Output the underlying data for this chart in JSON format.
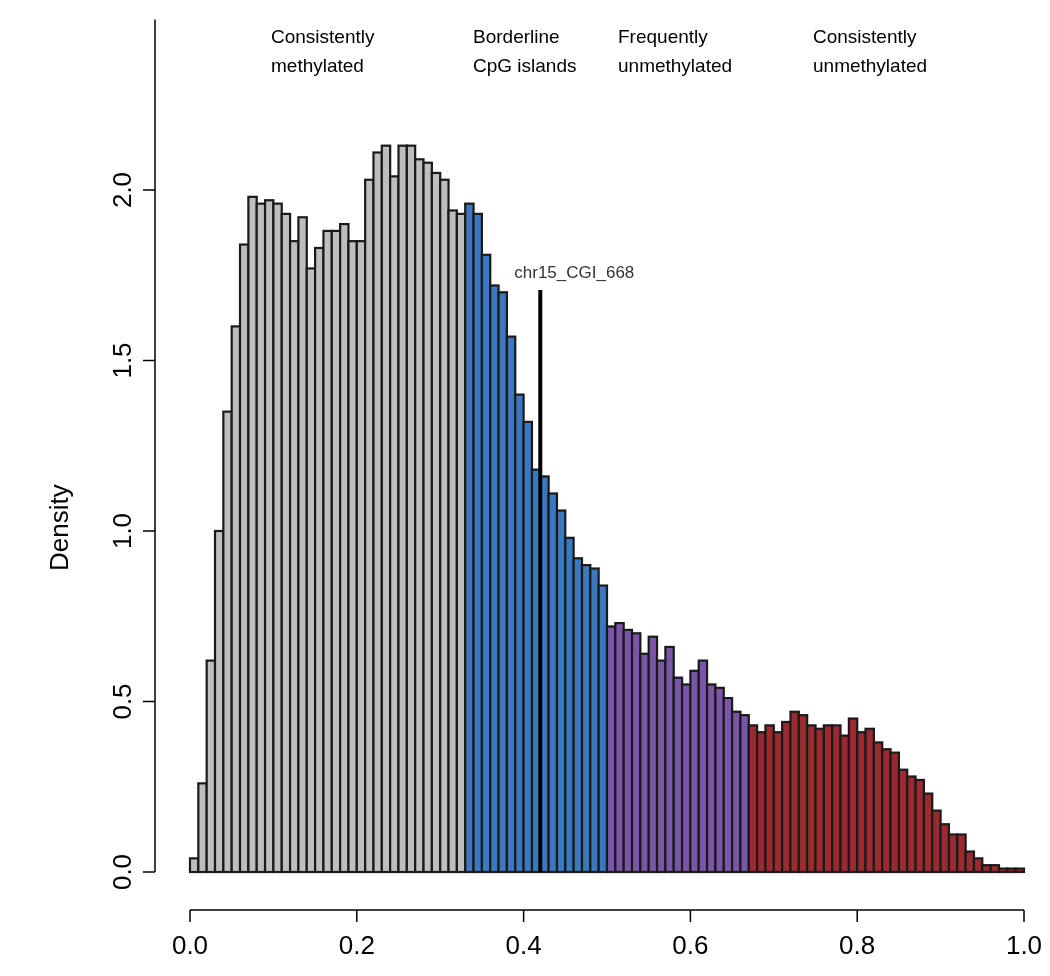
{
  "chart_data": {
    "type": "histogram",
    "ylabel": "Density",
    "bins": [
      0,
      0.01,
      0.02,
      0.03,
      0.04,
      0.05,
      0.06,
      0.07,
      0.08,
      0.09,
      0.1,
      0.11,
      0.12,
      0.13,
      0.14,
      0.15,
      0.16,
      0.17,
      0.18,
      0.19,
      0.2,
      0.21,
      0.22,
      0.23,
      0.24,
      0.25,
      0.26,
      0.27,
      0.28,
      0.29,
      0.3,
      0.31,
      0.32,
      0.33,
      0.34,
      0.35,
      0.36,
      0.37,
      0.38,
      0.39,
      0.4,
      0.41,
      0.42,
      0.43,
      0.44,
      0.45,
      0.46,
      0.47,
      0.48,
      0.49,
      0.5,
      0.51,
      0.52,
      0.53,
      0.54,
      0.55,
      0.56,
      0.57,
      0.58,
      0.59,
      0.6,
      0.61,
      0.62,
      0.63,
      0.64,
      0.65,
      0.66,
      0.67,
      0.68,
      0.69,
      0.7,
      0.71,
      0.72,
      0.73,
      0.74,
      0.75,
      0.76,
      0.77,
      0.78,
      0.79,
      0.8,
      0.81,
      0.82,
      0.83,
      0.84,
      0.85,
      0.86,
      0.87,
      0.88,
      0.89,
      0.9,
      0.91,
      0.92,
      0.93,
      0.94,
      0.95,
      0.96,
      0.97,
      0.98,
      0.99,
      1
    ],
    "values": [
      0.04,
      0.26,
      0.62,
      1.0,
      1.35,
      1.6,
      1.84,
      1.98,
      1.96,
      1.97,
      1.96,
      1.93,
      1.85,
      1.92,
      1.77,
      1.83,
      1.88,
      1.88,
      1.9,
      1.85,
      1.85,
      2.03,
      2.11,
      2.13,
      2.04,
      2.13,
      2.13,
      2.09,
      2.08,
      2.05,
      2.03,
      1.94,
      1.93,
      1.96,
      1.93,
      1.81,
      1.72,
      1.7,
      1.57,
      1.4,
      1.32,
      1.18,
      1.16,
      1.11,
      1.06,
      0.98,
      0.92,
      0.9,
      0.89,
      0.84,
      0.72,
      0.73,
      0.71,
      0.7,
      0.64,
      0.69,
      0.62,
      0.66,
      0.57,
      0.55,
      0.59,
      0.62,
      0.55,
      0.54,
      0.51,
      0.47,
      0.46,
      0.43,
      0.41,
      0.43,
      0.41,
      0.44,
      0.47,
      0.46,
      0.43,
      0.42,
      0.43,
      0.43,
      0.4,
      0.45,
      0.41,
      0.42,
      0.38,
      0.36,
      0.35,
      0.3,
      0.28,
      0.27,
      0.23,
      0.18,
      0.14,
      0.11,
      0.11,
      0.06,
      0.04,
      0.02,
      0.02,
      0.01,
      0.01,
      0.01
    ],
    "colors": [
      "#bebebe",
      "#bebebe",
      "#bebebe",
      "#bebebe",
      "#bebebe",
      "#bebebe",
      "#bebebe",
      "#bebebe",
      "#bebebe",
      "#bebebe",
      "#bebebe",
      "#bebebe",
      "#bebebe",
      "#bebebe",
      "#bebebe",
      "#bebebe",
      "#bebebe",
      "#bebebe",
      "#bebebe",
      "#bebebe",
      "#bebebe",
      "#bebebe",
      "#bebebe",
      "#bebebe",
      "#bebebe",
      "#bebebe",
      "#bebebe",
      "#bebebe",
      "#bebebe",
      "#bebebe",
      "#bebebe",
      "#bebebe",
      "#bebebe",
      "#3a78bf",
      "#3a78bf",
      "#3a78bf",
      "#3a78bf",
      "#3a78bf",
      "#3a78bf",
      "#3a78bf",
      "#3a78bf",
      "#3a78bf",
      "#3a78bf",
      "#3a78bf",
      "#3a78bf",
      "#3a78bf",
      "#3a78bf",
      "#3a78bf",
      "#3a78bf",
      "#3a78bf",
      "#7a55a8",
      "#7a55a8",
      "#7a55a8",
      "#7a55a8",
      "#7a55a8",
      "#7a55a8",
      "#7a55a8",
      "#7a55a8",
      "#7a55a8",
      "#7a55a8",
      "#7a55a8",
      "#7a55a8",
      "#7a55a8",
      "#7a55a8",
      "#7a55a8",
      "#7a55a8",
      "#7a55a8",
      "#9b2a30",
      "#9b2a30",
      "#9b2a30",
      "#9b2a30",
      "#9b2a30",
      "#9b2a30",
      "#9b2a30",
      "#9b2a30",
      "#9b2a30",
      "#9b2a30",
      "#9b2a30",
      "#9b2a30",
      "#9b2a30",
      "#9b2a30",
      "#9b2a30",
      "#9b2a30",
      "#9b2a30",
      "#9b2a30",
      "#9b2a30",
      "#9b2a30",
      "#9b2a30",
      "#9b2a30",
      "#9b2a30",
      "#9b2a30",
      "#9b2a30",
      "#9b2a30",
      "#9b2a30",
      "#9b2a30",
      "#9b2a30",
      "#9b2a30",
      "#9b2a30",
      "#9b2a30",
      "#9b2a30"
    ],
    "xlim": [
      0,
      1
    ],
    "xticks": [
      {
        "value": 0,
        "label": "0.0"
      },
      0.2,
      0.4,
      0.6,
      0.8,
      {
        "value": 1,
        "label": "1.0"
      }
    ],
    "ylim": [
      0,
      2.5
    ],
    "yticks": [
      {
        "value": 0,
        "label": "0.0"
      },
      0.5,
      {
        "value": 1,
        "label": "1.0"
      },
      1.5,
      {
        "value": 2,
        "label": "2.0"
      }
    ],
    "annotations": [
      "Consistently\nmethylated",
      "Borderline\nCpG islands",
      "Frequently\nunmethylated",
      "Consistently\nunmethylated"
    ],
    "ref_lines": [
      {
        "axis": "x",
        "value": 0.42,
        "label": "chr15_CGI_668"
      }
    ],
    "grid": false
  }
}
